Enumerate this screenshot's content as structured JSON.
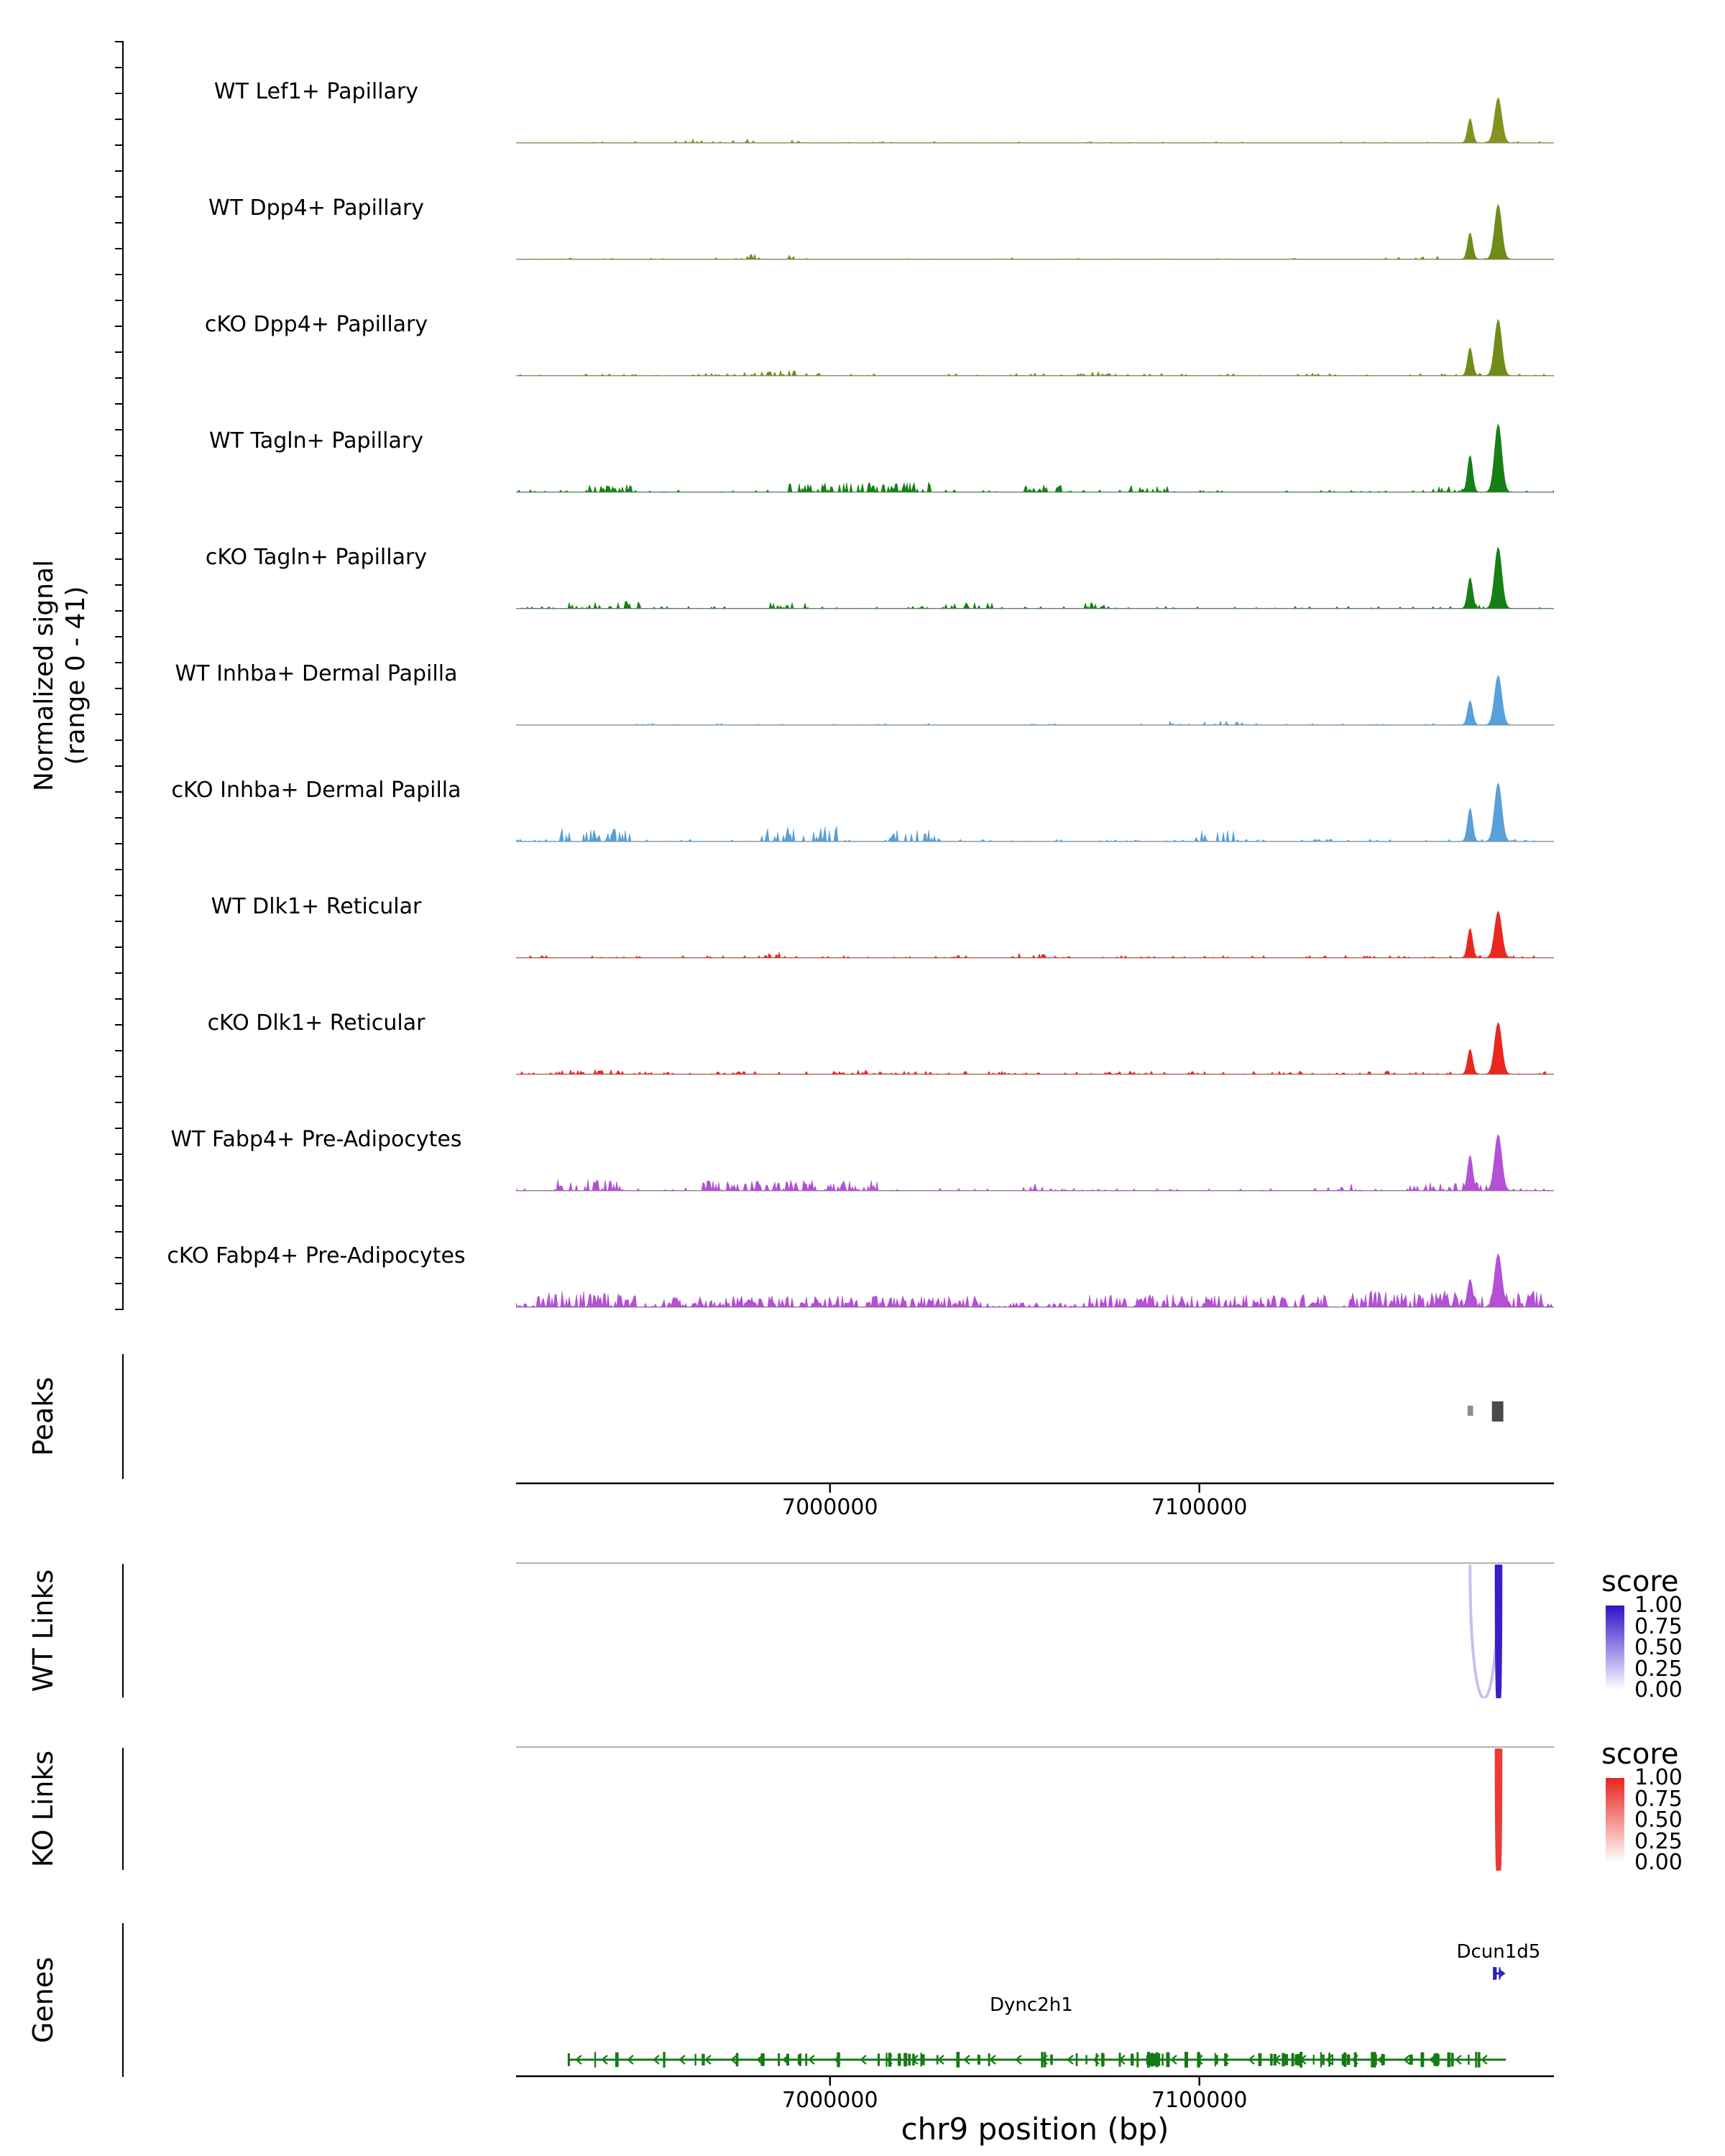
{
  "figure": {
    "y_axis_label_line1": "Normalized signal",
    "y_axis_label_line2": "(range 0 - 41)",
    "peaks_section_label": "Peaks",
    "wt_links_section_label": "WT Links",
    "ko_links_section_label": "KO Links",
    "genes_section_label": "Genes",
    "x_axis_label": "chr9 position (bp)"
  },
  "legend": {
    "title": "score",
    "tick_labels": [
      "1.00",
      "0.75",
      "0.50",
      "0.25",
      "0.00"
    ],
    "wt_high_color": "#2f12c8",
    "ko_high_color": "#e8251f",
    "low_color": "#ffffff"
  },
  "chart_data": {
    "type": "area",
    "xlabel": "chr9 position (bp)",
    "ylabel": "Normalized signal (range 0 - 41)",
    "signal_range": [
      0,
      41
    ],
    "x_domain_bp": [
      6915000,
      7196000
    ],
    "x_ticks": [
      {
        "bp": 7000000,
        "label": "7000000"
      },
      {
        "bp": 7100000,
        "label": "7100000"
      }
    ],
    "tracks": [
      {
        "label": "WT Lef1+ Papillary",
        "color": "#84921e",
        "seed": 11,
        "base": [
          0,
          1,
          0.02,
          0.05
        ],
        "regions": [
          [
            0.15,
            0.28,
            0.05,
            0.12
          ]
        ],
        "peaks": [
          {
            "bp": 7173300,
            "h": 0.33,
            "sigma": 3.5
          },
          {
            "bp": 7180900,
            "h": 0.61,
            "sigma": 5
          }
        ]
      },
      {
        "label": "WT Dpp4+ Papillary",
        "color": "#6f8c1a",
        "seed": 22,
        "base": [
          0,
          1,
          0.02,
          0.06
        ],
        "regions": [
          [
            0.22,
            0.27,
            0.07,
            0.2
          ],
          [
            0.85,
            0.9,
            0.05,
            0.12
          ]
        ],
        "peaks": [
          {
            "bp": 7173300,
            "h": 0.36,
            "sigma": 3.5
          },
          {
            "bp": 7180900,
            "h": 0.74,
            "sigma": 5
          }
        ]
      },
      {
        "label": "cKO Dpp4+ Papillary",
        "color": "#6f8c1a",
        "seed": 33,
        "base": [
          0,
          1,
          0.03,
          0.1
        ],
        "regions": [
          [
            0.2,
            0.3,
            0.07,
            0.25
          ],
          [
            0.5,
            0.58,
            0.06,
            0.18
          ]
        ],
        "peaks": [
          {
            "bp": 7173300,
            "h": 0.38,
            "sigma": 3.5
          },
          {
            "bp": 7180900,
            "h": 0.76,
            "sigma": 5
          }
        ]
      },
      {
        "label": "WT Tagln+ Papillary",
        "color": "#168016",
        "seed": 44,
        "base": [
          0,
          1,
          0.03,
          0.12
        ],
        "regions": [
          [
            0.07,
            0.12,
            0.1,
            0.3
          ],
          [
            0.26,
            0.4,
            0.13,
            0.4
          ],
          [
            0.49,
            0.53,
            0.1,
            0.3
          ],
          [
            0.59,
            0.64,
            0.1,
            0.3
          ],
          [
            0.88,
            0.92,
            0.08,
            0.25
          ]
        ],
        "peaks": [
          {
            "bp": 7173300,
            "h": 0.5,
            "sigma": 3.5
          },
          {
            "bp": 7180900,
            "h": 0.92,
            "sigma": 5
          }
        ]
      },
      {
        "label": "cKO Tagln+ Papillary",
        "color": "#168016",
        "seed": 55,
        "base": [
          0,
          1,
          0.03,
          0.12
        ],
        "regions": [
          [
            0.05,
            0.13,
            0.1,
            0.3
          ],
          [
            0.24,
            0.28,
            0.09,
            0.3
          ],
          [
            0.4,
            0.46,
            0.11,
            0.3
          ],
          [
            0.54,
            0.57,
            0.08,
            0.25
          ],
          [
            0.9,
            0.93,
            0.07,
            0.25
          ]
        ],
        "peaks": [
          {
            "bp": 7173300,
            "h": 0.42,
            "sigma": 3.5
          },
          {
            "bp": 7180900,
            "h": 0.83,
            "sigma": 5
          }
        ]
      },
      {
        "label": "WT Inhba+ Dermal Papilla",
        "color": "#57a0d9",
        "seed": 66,
        "base": [
          0,
          1,
          0.02,
          0.05
        ],
        "regions": [
          [
            0.63,
            0.7,
            0.05,
            0.12
          ]
        ],
        "peaks": [
          {
            "bp": 7173300,
            "h": 0.33,
            "sigma": 3.5
          },
          {
            "bp": 7180900,
            "h": 0.67,
            "sigma": 5
          }
        ]
      },
      {
        "label": "cKO Inhba+ Dermal Papilla",
        "color": "#57a0d9",
        "seed": 77,
        "base": [
          0,
          1,
          0.03,
          0.12
        ],
        "regions": [
          [
            0.04,
            0.11,
            0.18,
            0.4
          ],
          [
            0.23,
            0.31,
            0.2,
            0.45
          ],
          [
            0.36,
            0.41,
            0.16,
            0.35
          ],
          [
            0.64,
            0.7,
            0.15,
            0.35
          ]
        ],
        "peaks": [
          {
            "bp": 7173300,
            "h": 0.45,
            "sigma": 3.5
          },
          {
            "bp": 7180900,
            "h": 0.79,
            "sigma": 5
          }
        ]
      },
      {
        "label": "WT Dlk1+ Reticular",
        "color": "#e8281e",
        "seed": 88,
        "base": [
          0,
          1,
          0.03,
          0.12
        ],
        "regions": [
          [
            0.22,
            0.26,
            0.08,
            0.3
          ],
          [
            0.48,
            0.52,
            0.06,
            0.25
          ]
        ],
        "peaks": [
          {
            "bp": 7173300,
            "h": 0.4,
            "sigma": 3.5
          },
          {
            "bp": 7180900,
            "h": 0.63,
            "sigma": 5
          }
        ]
      },
      {
        "label": "cKO Dlk1+ Reticular",
        "color": "#e8281e",
        "seed": 99,
        "base": [
          0,
          1,
          0.04,
          0.25
        ],
        "regions": [
          [
            0.04,
            0.1,
            0.07,
            0.35
          ],
          [
            0.3,
            0.34,
            0.06,
            0.3
          ]
        ],
        "peaks": [
          {
            "bp": 7173300,
            "h": 0.34,
            "sigma": 3.5
          },
          {
            "bp": 7180900,
            "h": 0.7,
            "sigma": 5
          }
        ]
      },
      {
        "label": "WT Fabp4+ Pre-Adipocytes",
        "color": "#b44fd6",
        "seed": 110,
        "base": [
          0,
          1,
          0.03,
          0.15
        ],
        "regions": [
          [
            0.04,
            0.1,
            0.15,
            0.4
          ],
          [
            0.16,
            0.35,
            0.14,
            0.45
          ],
          [
            0.48,
            0.52,
            0.1,
            0.3
          ],
          [
            0.77,
            0.81,
            0.11,
            0.3
          ],
          [
            0.86,
            0.94,
            0.12,
            0.4
          ]
        ],
        "peaks": [
          {
            "bp": 7173300,
            "h": 0.48,
            "sigma": 3.5
          },
          {
            "bp": 7180900,
            "h": 0.76,
            "sigma": 5
          }
        ]
      },
      {
        "label": "cKO Fabp4+ Pre-Adipocytes",
        "color": "#b44fd6",
        "seed": 121,
        "base": [
          0,
          1,
          0.06,
          0.35
        ],
        "regions": [
          [
            0.02,
            0.12,
            0.22,
            0.5
          ],
          [
            0.14,
            0.45,
            0.15,
            0.45
          ],
          [
            0.55,
            0.78,
            0.17,
            0.45
          ],
          [
            0.8,
            0.99,
            0.22,
            0.55
          ]
        ],
        "peaks": [
          {
            "bp": 7173300,
            "h": 0.38,
            "sigma": 3.5
          },
          {
            "bp": 7180900,
            "h": 0.72,
            "sigma": 5
          }
        ]
      }
    ],
    "peaks": [
      {
        "start": 7172600,
        "end": 7174100,
        "y": 6,
        "height": 14,
        "color": "#8c8c8c"
      },
      {
        "start": 7179200,
        "end": 7182300,
        "y": 0,
        "height": 28,
        "color": "#4a4a4a"
      }
    ],
    "wt_links": [
      {
        "start": 7173300,
        "end": 7180900,
        "score": 0.27
      },
      {
        "start": 7180600,
        "end": 7181400,
        "score": 0.95
      }
    ],
    "ko_links": [
      {
        "start": 7180600,
        "end": 7181400,
        "score": 0.9
      }
    ],
    "genes": [
      {
        "name": "Dync2h1",
        "start": 6929000,
        "end": 7183000,
        "strand": "-",
        "color": "#157a15",
        "exon_count": 95,
        "right_bias": 0.8,
        "seed": 7,
        "line_y": 190,
        "label_bp": 7054500,
        "label_y": 122
      },
      {
        "name": "Dcun1d5",
        "start": 7179500,
        "end": 7182500,
        "strand": "+",
        "color": "#2525b0",
        "exon_count": 2,
        "right_bias": 1,
        "seed": 3,
        "line_y": 70,
        "label_bp": 7181000,
        "label_y": 48
      }
    ]
  }
}
